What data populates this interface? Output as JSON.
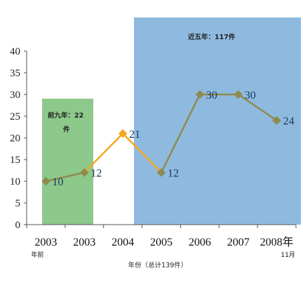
{
  "chart_data": {
    "type": "line",
    "categories": [
      "2003",
      "2003",
      "2004",
      "2005",
      "2006",
      "2007",
      "2008年"
    ],
    "category_subs": [
      "年前",
      "",
      "",
      "",
      "",
      "",
      "11月"
    ],
    "values": [
      10,
      12,
      21,
      12,
      30,
      30,
      24
    ],
    "data_labels": [
      "10",
      "12",
      "21",
      "12",
      "30",
      "30",
      "24"
    ],
    "ylim": [
      0,
      40
    ],
    "yticks": [
      0,
      5,
      10,
      15,
      20,
      25,
      30,
      35,
      40
    ],
    "ytick_labels": [
      "0",
      "5",
      "10",
      "15",
      "20",
      "25",
      "30",
      "35",
      "40"
    ],
    "xlabel": "年份（总计139件）",
    "grid": false,
    "annotations": [
      {
        "text_line1": "前九年：22",
        "text_line2": "件",
        "shade_color": "#8dc98a",
        "span_categories": [
          0,
          1
        ]
      },
      {
        "text_line1": "近五年：117件",
        "shade_color": "#8fbadf",
        "span_categories": [
          3,
          6
        ]
      }
    ],
    "colors": {
      "line": "#8f8a4e",
      "marker": "#8f8a4e",
      "highlight_line": "#f5a623",
      "highlight_marker": "#f5a623",
      "data_label": "#1f3864"
    }
  }
}
